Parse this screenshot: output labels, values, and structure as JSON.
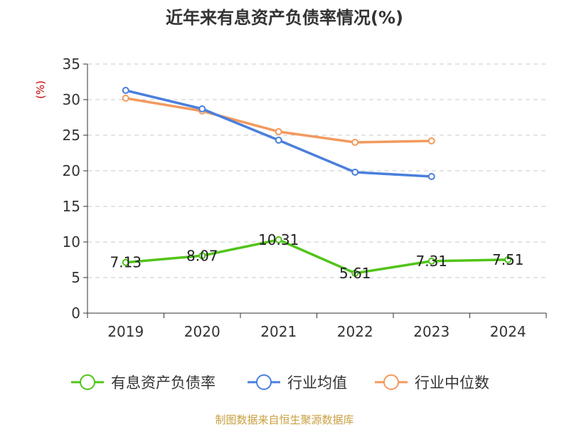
{
  "chart_data": {
    "type": "line",
    "title": "近年来有息资产负债率情况(%)",
    "ylabel": "(%)",
    "xlabel": "",
    "categories": [
      "2019",
      "2020",
      "2021",
      "2022",
      "2023",
      "2024"
    ],
    "ylim": [
      0,
      35
    ],
    "yticks": [
      0,
      5,
      10,
      15,
      20,
      25,
      30,
      35
    ],
    "grid": true,
    "legend_position": "bottom",
    "series": [
      {
        "name": "有息资产负债率",
        "color": "#52c41a",
        "values": [
          7.13,
          8.07,
          10.31,
          5.61,
          7.31,
          7.51
        ],
        "labels": [
          "7.13",
          "8.07",
          "10.31",
          "5.61",
          "7.31",
          "7.51"
        ]
      },
      {
        "name": "行业均值",
        "color": "#4a7fdc",
        "values": [
          31.3,
          28.7,
          24.3,
          19.8,
          19.2,
          null
        ]
      },
      {
        "name": "行业中位数",
        "color": "#f39a5e",
        "values": [
          30.2,
          28.4,
          25.5,
          24.0,
          24.2,
          null
        ]
      }
    ],
    "source": "制图数据来自恒生聚源数据库"
  }
}
